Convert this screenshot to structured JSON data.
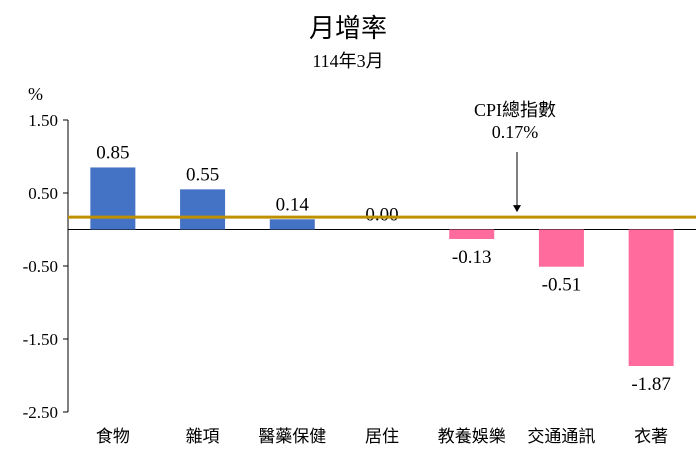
{
  "title": "月增率",
  "subtitle": "114年3月",
  "unit": "%",
  "annotation": {
    "label": "CPI總指數",
    "value": "0.17%"
  },
  "colors": {
    "positive": "#4472C4",
    "negative": "#FF6B9D",
    "reference_line": "#BF9000"
  },
  "chart_data": {
    "type": "bar",
    "categories": [
      "食物",
      "雜項",
      "醫藥保健",
      "居住",
      "教養娛樂",
      "交通通訊",
      "衣著"
    ],
    "values": [
      0.85,
      0.55,
      0.14,
      0.0,
      -0.13,
      -0.51,
      -1.87
    ],
    "data_labels": [
      "0.85",
      "0.55",
      "0.14",
      "0.00",
      "-0.13",
      "-0.51",
      "-1.87"
    ],
    "yticks": [
      1.5,
      0.5,
      -0.5,
      -1.5,
      -2.5
    ],
    "ytick_labels": [
      "1.50",
      "0.50",
      "-0.50",
      "-1.50",
      "-2.50"
    ],
    "ylim": [
      -2.5,
      1.5
    ],
    "reference_line": 0.17,
    "grid": false,
    "legend": "none"
  }
}
